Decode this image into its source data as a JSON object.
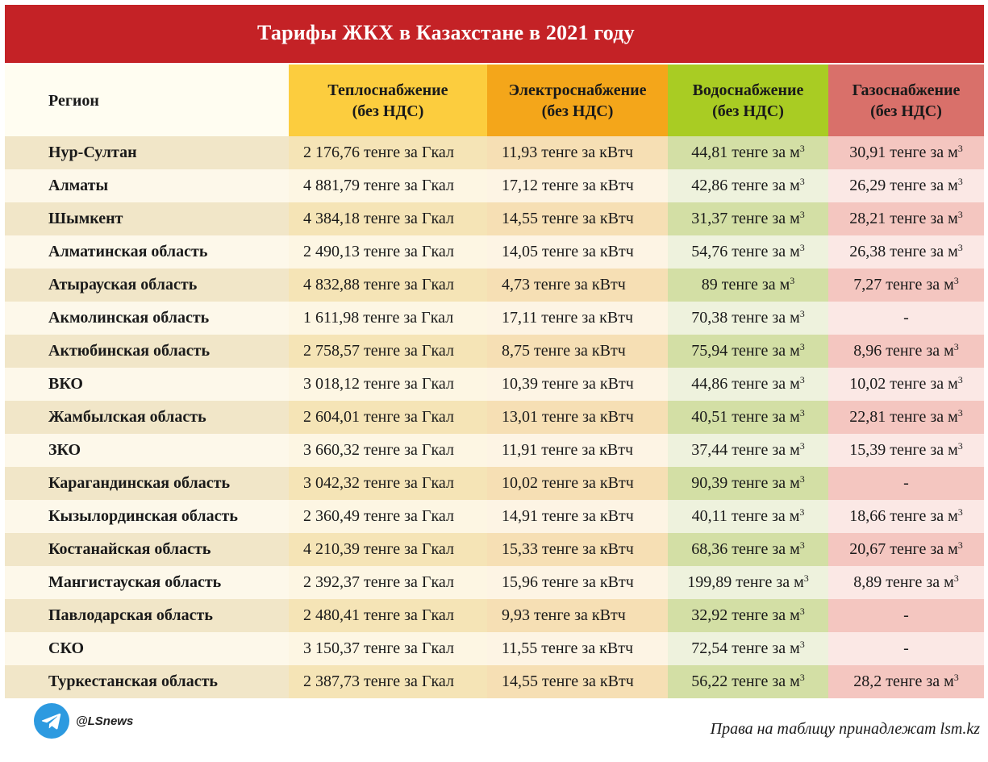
{
  "title": "Тарифы ЖКХ в Казахстане в 2021 году",
  "headers": {
    "region": "Регион",
    "heat": [
      "Теплоснабжение",
      "(без НДС)"
    ],
    "electricity": [
      "Электроснабжение",
      "(без НДС)"
    ],
    "water": [
      "Водоснабжение",
      "(без НДС)"
    ],
    "gas": [
      "Газоснабжение",
      "(без НДС)"
    ]
  },
  "colors": {
    "title_bar": "#c42226",
    "heat_header": "#fccd3e",
    "electricity_header": "#f4a61a",
    "water_header": "#a9cc23",
    "gas_header": "#d9706a",
    "telegram": "#2d9ae0"
  },
  "rows": [
    {
      "region": "Нур-Султан",
      "heat": "2 176,76 тенге за Гкал",
      "electricity": "11,93 тенге за кВтч",
      "water": "44,81 тенге за м",
      "gas": "30,91 тенге за м"
    },
    {
      "region": "Алматы",
      "heat": "4 881,79 тенге за Гкал",
      "electricity": "17,12 тенге за кВтч",
      "water": "42,86 тенге за м",
      "gas": "26,29 тенге за м"
    },
    {
      "region": "Шымкент",
      "heat": "4 384,18 тенге за Гкал",
      "electricity": "14,55 тенге за кВтч",
      "water": "31,37 тенге за м",
      "gas": "28,21 тенге за м"
    },
    {
      "region": "Алматинская область",
      "heat": "2 490,13 тенге за Гкал",
      "electricity": "14,05 тенге за кВтч",
      "water": "54,76 тенге за м",
      "gas": "26,38 тенге за м"
    },
    {
      "region": "Атырауская область",
      "heat": "4 832,88 тенге за Гкал",
      "electricity": "4,73 тенге за кВтч",
      "water": "89 тенге за м",
      "gas": "7,27 тенге за м"
    },
    {
      "region": "Акмолинская область",
      "heat": "1 611,98 тенге за Гкал",
      "electricity": "17,11 тенге за кВтч",
      "water": "70,38 тенге за м",
      "gas": "-"
    },
    {
      "region": "Актюбинская область",
      "heat": "2 758,57 тенге за Гкал",
      "electricity": "8,75 тенге за кВтч",
      "water": "75,94 тенге за м",
      "gas": "8,96 тенге за м"
    },
    {
      "region": "ВКО",
      "heat": "3 018,12 тенге за Гкал",
      "electricity": "10,39 тенге за кВтч",
      "water": "44,86 тенге за м",
      "gas": "10,02 тенге за м"
    },
    {
      "region": "Жамбылская область",
      "heat": "2 604,01 тенге за Гкал",
      "electricity": "13,01 тенге за кВтч",
      "water": "40,51 тенге за м",
      "gas": "22,81 тенге за м"
    },
    {
      "region": "ЗКО",
      "heat": "3 660,32 тенге за Гкал",
      "electricity": "11,91 тенге за кВтч",
      "water": "37,44 тенге за м",
      "gas": "15,39 тенге за м"
    },
    {
      "region": "Карагандинская область",
      "heat": "3 042,32 тенге за Гкал",
      "electricity": "10,02 тенге за кВтч",
      "water": "90,39 тенге за м",
      "gas": "-"
    },
    {
      "region": "Кызылординская область",
      "heat": "2 360,49 тенге за Гкал",
      "electricity": "14,91 тенге за кВтч",
      "water": "40,11 тенге за м",
      "gas": "18,66 тенге за м"
    },
    {
      "region": "Костанайская область",
      "heat": "4 210,39 тенге за Гкал",
      "electricity": "15,33 тенге за кВтч",
      "water": "68,36 тенге за м",
      "gas": "20,67 тенге за м"
    },
    {
      "region": "Мангистауская область",
      "heat": "2 392,37 тенге за Гкал",
      "electricity": "15,96 тенге за кВтч",
      "water": "199,89 тенге за м",
      "gas": "8,89 тенге за м"
    },
    {
      "region": "Павлодарская область",
      "heat": "2 480,41 тенге за Гкал",
      "electricity": "9,93 тенге за кВтч",
      "water": "32,92 тенге за м",
      "gas": "-"
    },
    {
      "region": "СКО",
      "heat": "3 150,37 тенге за Гкал",
      "electricity": "11,55 тенге за кВтч",
      "water": "72,54 тенге за м",
      "gas": "-"
    },
    {
      "region": "Туркестанская область",
      "heat": "2 387,73 тенге за Гкал",
      "electricity": "14,55 тенге за кВтч",
      "water": "56,22 тенге за м",
      "gas": "28,2 тенге за м"
    }
  ],
  "cubic_superscript": "3",
  "footer": {
    "icon": "telegram-icon",
    "handle": "@LSnews",
    "rights": "Права на таблицу принадлежат lsm.kz"
  }
}
